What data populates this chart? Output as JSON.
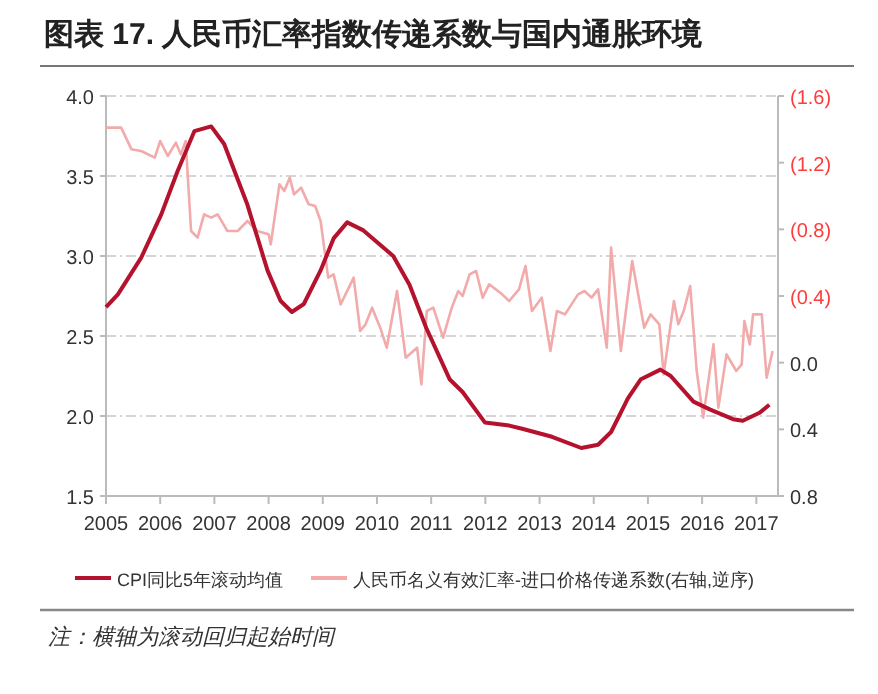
{
  "chart_data": {
    "type": "line",
    "title": "图表 17. 人民币汇率指数传递系数与国内通胀环境",
    "annotations": [
      "注：横轴为滚动回归起始时间"
    ],
    "xlim": [
      2005,
      2017.4
    ],
    "xticks": [
      2005,
      2006,
      2007,
      2008,
      2009,
      2010,
      2011,
      2012,
      2013,
      2014,
      2015,
      2016,
      2017
    ],
    "ylim": [
      1.5,
      4.0
    ],
    "yticks": [
      {
        "value": 1.5,
        "label": "1.5"
      },
      {
        "value": 2.0,
        "label": "2.0"
      },
      {
        "value": 2.5,
        "label": "2.5"
      },
      {
        "value": 3.0,
        "label": "3.0"
      },
      {
        "value": 3.5,
        "label": "3.5"
      },
      {
        "value": 4.0,
        "label": "4.0"
      }
    ],
    "y2lim": [
      0.8,
      -1.6
    ],
    "y2ticks": [
      {
        "value": -1.6,
        "label": "(1.6)"
      },
      {
        "value": -1.2,
        "label": "(1.2)"
      },
      {
        "value": -0.8,
        "label": "(0.8)"
      },
      {
        "value": -0.4,
        "label": "(0.4)"
      },
      {
        "value": 0.0,
        "label": "0.0"
      },
      {
        "value": 0.4,
        "label": "0.4"
      },
      {
        "value": 0.8,
        "label": "0.8"
      }
    ],
    "grid": "y",
    "legend": "bottom",
    "series": [
      {
        "name": "CPI同比5年滚动均值",
        "color": "#b5122e",
        "x": [
          2005.0,
          2005.22,
          2005.65,
          2006.02,
          2006.32,
          2006.63,
          2006.94,
          2007.18,
          2007.61,
          2007.98,
          2008.22,
          2008.43,
          2008.65,
          2008.96,
          2009.2,
          2009.45,
          2009.75,
          2010.3,
          2010.6,
          2010.91,
          2011.34,
          2011.58,
          2011.99,
          2012.44,
          2012.68,
          2013.23,
          2013.77,
          2014.08,
          2014.32,
          2014.63,
          2014.87,
          2015.23,
          2015.42,
          2015.84,
          2016.15,
          2016.57,
          2016.75,
          2017.06,
          2017.24
        ],
        "values": [
          2.68,
          2.76,
          2.99,
          3.26,
          3.53,
          3.78,
          3.81,
          3.7,
          3.32,
          2.91,
          2.72,
          2.65,
          2.7,
          2.91,
          3.11,
          3.21,
          3.16,
          3.0,
          2.82,
          2.55,
          2.23,
          2.15,
          1.96,
          1.94,
          1.92,
          1.87,
          1.8,
          1.82,
          1.9,
          2.11,
          2.23,
          2.29,
          2.25,
          2.09,
          2.04,
          1.98,
          1.97,
          2.02,
          2.07
        ]
      },
      {
        "name": "人民币名义有效汇率-进口价格传递系数(右轴,逆序)",
        "color": "#f2aaaa",
        "axis": "y2",
        "x": [
          2005.0,
          2005.28,
          2005.47,
          2005.65,
          2005.9,
          2006.0,
          2006.14,
          2006.29,
          2006.38,
          2006.47,
          2006.57,
          2006.69,
          2006.81,
          2006.94,
          2007.06,
          2007.24,
          2007.43,
          2007.61,
          2007.79,
          2008.0,
          2008.04,
          2008.2,
          2008.29,
          2008.39,
          2008.47,
          2008.6,
          2008.74,
          2008.86,
          2008.96,
          2009.1,
          2009.2,
          2009.33,
          2009.57,
          2009.69,
          2009.79,
          2009.91,
          2010.06,
          2010.18,
          2010.37,
          2010.53,
          2010.74,
          2010.82,
          2010.92,
          2011.04,
          2011.22,
          2011.38,
          2011.5,
          2011.58,
          2011.71,
          2011.83,
          2011.95,
          2012.07,
          2012.31,
          2012.44,
          2012.62,
          2012.74,
          2012.86,
          2013.04,
          2013.2,
          2013.32,
          2013.47,
          2013.71,
          2013.83,
          2013.96,
          2014.08,
          2014.24,
          2014.32,
          2014.5,
          2014.71,
          2014.93,
          2015.05,
          2015.21,
          2015.29,
          2015.48,
          2015.56,
          2015.66,
          2015.78,
          2015.9,
          2016.02,
          2016.21,
          2016.3,
          2016.45,
          2016.63,
          2016.73,
          2016.78,
          2016.88,
          2016.94,
          2017.1,
          2017.19,
          2017.3
        ],
        "values": [
          -1.41,
          -1.41,
          -1.28,
          -1.27,
          -1.23,
          -1.33,
          -1.24,
          -1.32,
          -1.25,
          -1.33,
          -0.79,
          -0.75,
          -0.89,
          -0.87,
          -0.89,
          -0.79,
          -0.79,
          -0.85,
          -0.79,
          -0.77,
          -0.71,
          -1.07,
          -1.03,
          -1.11,
          -1.01,
          -1.05,
          -0.95,
          -0.94,
          -0.85,
          -0.51,
          -0.53,
          -0.35,
          -0.51,
          -0.19,
          -0.23,
          -0.33,
          -0.21,
          -0.09,
          -0.43,
          -0.03,
          -0.09,
          0.13,
          -0.31,
          -0.33,
          -0.15,
          -0.33,
          -0.43,
          -0.4,
          -0.53,
          -0.55,
          -0.39,
          -0.47,
          -0.41,
          -0.37,
          -0.44,
          -0.58,
          -0.31,
          -0.39,
          -0.07,
          -0.31,
          -0.29,
          -0.41,
          -0.43,
          -0.39,
          -0.44,
          -0.09,
          -0.69,
          -0.07,
          -0.61,
          -0.21,
          -0.29,
          -0.23,
          0.07,
          -0.37,
          -0.23,
          -0.31,
          -0.46,
          0.05,
          0.33,
          -0.11,
          0.27,
          -0.05,
          0.05,
          0.01,
          -0.25,
          -0.11,
          -0.29,
          -0.29,
          0.09,
          -0.07
        ]
      }
    ]
  }
}
